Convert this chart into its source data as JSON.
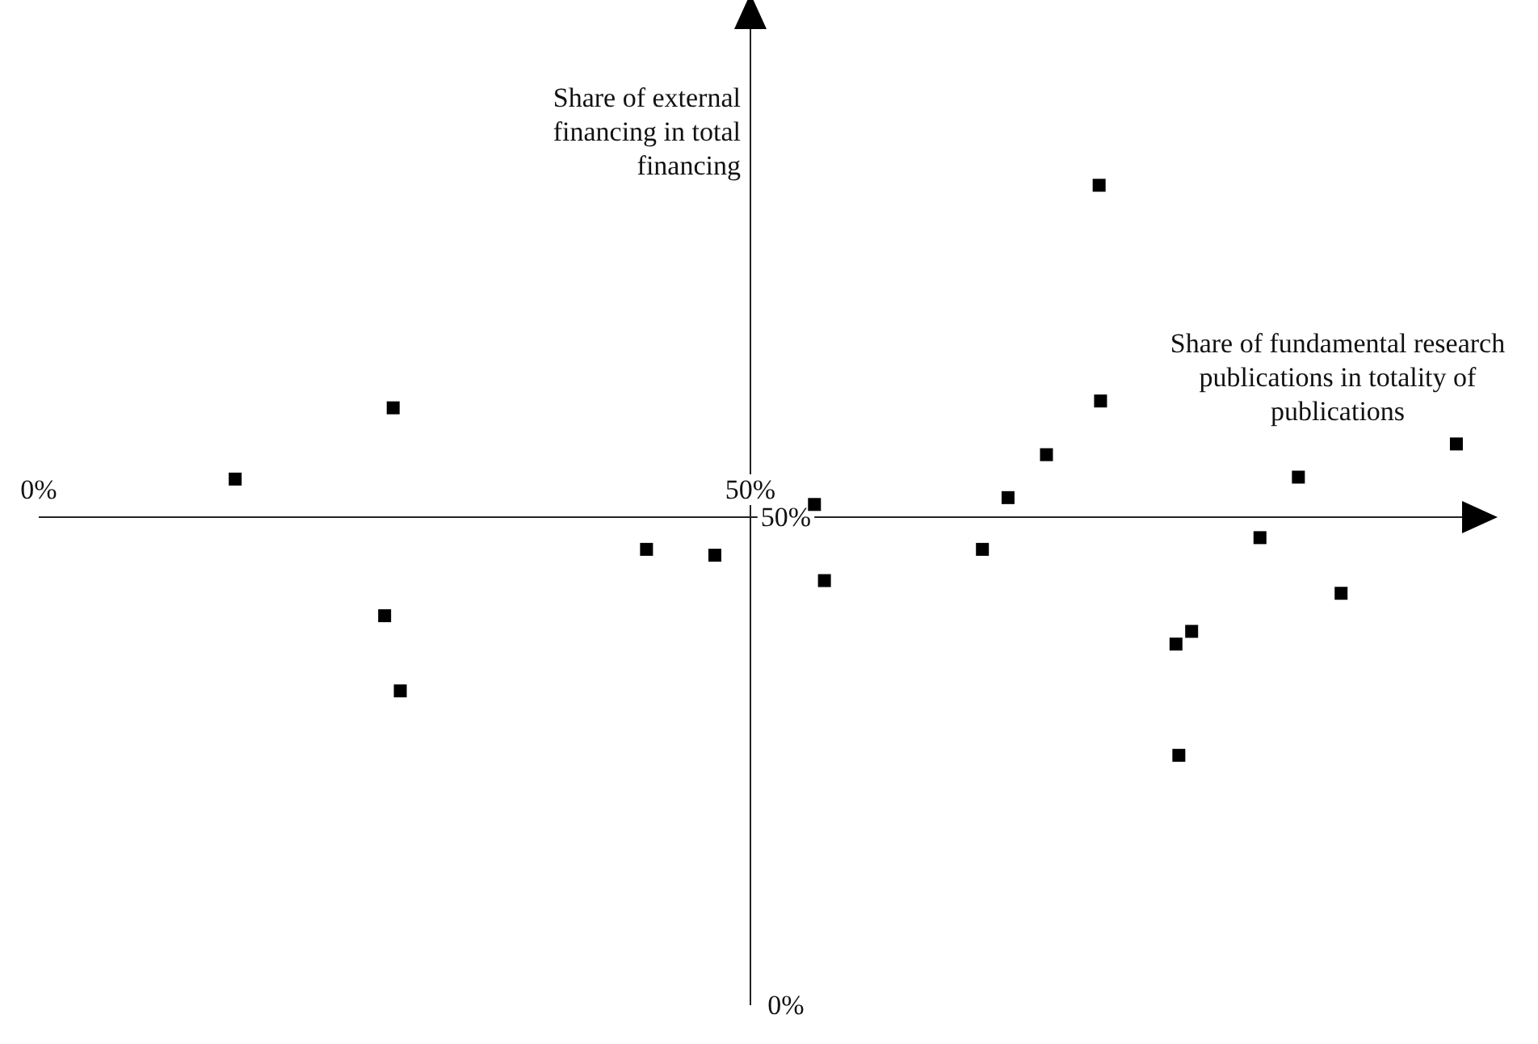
{
  "chart_data": {
    "type": "scatter",
    "xlabel": "Share of fundamental research publications in totality of publications",
    "ylabel": "Share of external financing in total financing",
    "xlim": [
      0,
      100
    ],
    "ylim": [
      0,
      100
    ],
    "xticks": [
      {
        "value": 0,
        "label": "0%"
      },
      {
        "value": 50,
        "label": "50%"
      }
    ],
    "yticks": [
      {
        "value": 0,
        "label": "0%"
      },
      {
        "value": 50,
        "label": "50%"
      }
    ],
    "marker": "square",
    "series": [
      {
        "color": "#000000",
        "x": [
          13.8,
          24.9,
          24.3,
          25.4,
          42.7,
          47.5,
          54.5,
          55.2,
          66.3,
          68.1,
          70.8,
          74.5,
          74.6,
          79.9,
          81.0,
          80.1,
          85.8,
          88.5,
          91.5,
          99.6
        ],
        "values": [
          53.9,
          61.2,
          39.9,
          32.2,
          46.7,
          46.1,
          51.3,
          43.5,
          46.7,
          52.0,
          56.4,
          84.0,
          61.9,
          37.0,
          38.3,
          25.6,
          47.9,
          54.1,
          42.2,
          57.5
        ]
      }
    ]
  }
}
